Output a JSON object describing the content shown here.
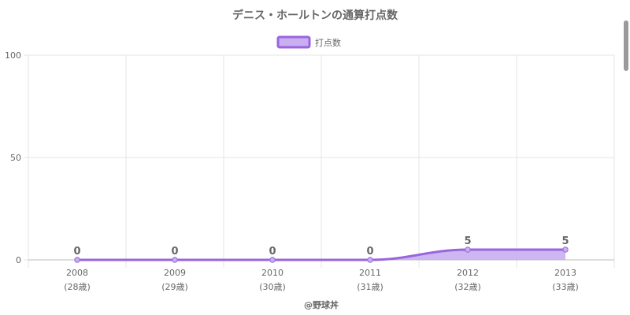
{
  "chart_data": {
    "type": "area",
    "title": "デニス・ホールトンの通算打点数",
    "categories": [
      "2008",
      "2009",
      "2010",
      "2011",
      "2012",
      "2013"
    ],
    "category_sublabels": [
      "(28歳)",
      "(29歳)",
      "(30歳)",
      "(31歳)",
      "(32歳)",
      "(33歳)"
    ],
    "series": [
      {
        "name": "打点数",
        "values": [
          0,
          0,
          0,
          0,
          5,
          5
        ],
        "line_color": "#9966dd",
        "fill_color": "#c9aef2"
      }
    ],
    "data_labels": [
      "0",
      "0",
      "0",
      "0",
      "5",
      "5"
    ],
    "yticks": [
      "0",
      "50",
      "100"
    ],
    "ylim": [
      0,
      100
    ],
    "grid": true,
    "legend_position": "top-center",
    "credit": "@野球丼",
    "colors": {
      "text": "#666666",
      "grid": "#e6e6e6",
      "axis": "#bbbbbb"
    }
  }
}
